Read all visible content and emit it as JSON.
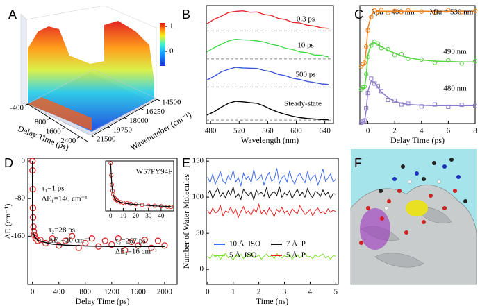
{
  "chart_data": [
    {
      "label": "A",
      "type": "surface3d",
      "xlabel": "Delay Time (ps)",
      "ylabel": "Wavenumber (cm⁻¹)",
      "xlim": [
        -400,
        2800
      ],
      "xticks": [
        -400,
        800,
        1600,
        2400
      ],
      "ylim": [
        14500,
        21500
      ],
      "yticks": [
        14500,
        16250,
        18000,
        19750,
        21500
      ],
      "clim": [
        -0.58,
        1.14
      ],
      "cticks": [
        1,
        0
      ]
    },
    {
      "label": "B",
      "type": "line",
      "xlabel": "Wavelength (nm)",
      "xlim": [
        474,
        652
      ],
      "xticks": [
        480,
        520,
        560,
        600,
        640
      ],
      "ylim": [
        0,
        4.2
      ],
      "x": [
        475,
        485,
        495,
        505,
        515,
        525,
        535,
        545,
        555,
        565,
        575,
        585,
        595,
        605,
        615,
        625,
        635,
        645
      ],
      "series": [
        {
          "name": "0.3 ps",
          "color": "#e8282e",
          "baseline": 3.3,
          "values": [
            3.55,
            3.71,
            3.82,
            3.95,
            3.99,
            4.01,
            3.96,
            3.97,
            3.88,
            3.85,
            3.74,
            3.7,
            3.6,
            3.58,
            3.5,
            3.47,
            3.41,
            3.39
          ]
        },
        {
          "name": "10 ps",
          "color": "#3fd94a",
          "baseline": 2.3,
          "values": [
            2.55,
            2.7,
            2.82,
            2.94,
            3.0,
            2.98,
            2.97,
            2.94,
            2.9,
            2.82,
            2.77,
            2.68,
            2.63,
            2.55,
            2.52,
            2.44,
            2.43,
            2.37
          ]
        },
        {
          "name": "500 ps",
          "color": "#3a56d4",
          "baseline": 1.3,
          "values": [
            1.55,
            1.68,
            1.84,
            1.93,
            2.0,
            1.98,
            1.97,
            1.96,
            1.89,
            1.84,
            1.75,
            1.7,
            1.61,
            1.57,
            1.5,
            1.46,
            1.41,
            1.39
          ]
        },
        {
          "name": "Steady-state",
          "color": "#000000",
          "baseline": 0.12,
          "values": [
            0.3,
            0.42,
            0.58,
            0.72,
            0.79,
            0.77,
            0.74,
            0.72,
            0.62,
            0.5,
            0.4,
            0.32,
            0.26,
            0.21,
            0.18,
            0.16,
            0.14,
            0.13
          ]
        }
      ]
    },
    {
      "label": "C",
      "type": "line",
      "xlabel": "Delay Time (ps)",
      "annotation": "λpu = 400 nm",
      "xlim": [
        -0.6,
        8
      ],
      "xticks": [
        0,
        2,
        4,
        6,
        8
      ],
      "ylim": [
        0,
        3.1
      ],
      "x": [
        -0.5,
        -0.375,
        -0.25,
        -0.125,
        0,
        0.25,
        0.5,
        0.75,
        1,
        1.5,
        2,
        2.5,
        3,
        4,
        5,
        6,
        7,
        8
      ],
      "series": [
        {
          "name": "λflu = 530 nm",
          "color": "#f0821e",
          "marker": "circle",
          "values": [
            1.5,
            1.56,
            1.6,
            2.02,
            2.45,
            2.8,
            2.97,
            2.92,
            2.98,
            2.91,
            2.96,
            2.93,
            2.97,
            2.94,
            2.92,
            2.98,
            2.93,
            2.96
          ],
          "fit": [
            1.53,
            1.53,
            1.56,
            1.95,
            2.5,
            2.85,
            2.93,
            2.95,
            2.95,
            2.95,
            2.95,
            2.95,
            2.95,
            2.95,
            2.95,
            2.95,
            2.95,
            2.95
          ]
        },
        {
          "name": "490 nm",
          "color": "#55d440",
          "marker": "circle",
          "values": [
            0.9,
            0.95,
            0.97,
            1.3,
            1.75,
            2.05,
            2.15,
            2.1,
            1.98,
            1.95,
            1.8,
            1.82,
            1.7,
            1.68,
            1.6,
            1.66,
            1.58,
            1.64
          ],
          "fit": [
            0.92,
            0.92,
            0.95,
            1.25,
            1.8,
            2.1,
            2.12,
            2.08,
            2.02,
            1.92,
            1.85,
            1.78,
            1.73,
            1.67,
            1.64,
            1.63,
            1.62,
            1.62
          ]
        },
        {
          "name": "480 nm",
          "color": "#8c7bc8",
          "marker": "square",
          "values": [
            0.02,
            0.05,
            0.08,
            0.4,
            0.8,
            1.18,
            1.05,
            0.98,
            0.85,
            0.62,
            0.6,
            0.5,
            0.52,
            0.45,
            0.5,
            0.44,
            0.49,
            0.46
          ],
          "fit": [
            0.03,
            0.03,
            0.06,
            0.35,
            0.85,
            1.12,
            1.08,
            0.95,
            0.83,
            0.68,
            0.58,
            0.53,
            0.5,
            0.48,
            0.47,
            0.47,
            0.47,
            0.47
          ]
        }
      ]
    },
    {
      "label": "D",
      "type": "scatter",
      "xlabel": "Delay Time (ps)",
      "ylabel": "ΔE (cm⁻¹)",
      "xlim": [
        -70,
        2190
      ],
      "xticks": [
        0,
        400,
        800,
        1200,
        1600,
        2000
      ],
      "ylim": [
        -263,
        6
      ],
      "yticks": [
        0,
        -80,
        -160
      ],
      "annotations": [
        "τ₁=1 ps",
        "ΔE₁=146 cm⁻¹",
        "τ₂=28 ps",
        "ΔE₂=20 cm⁻¹",
        "τ₃=267 ps",
        "ΔE₃=16 cm⁻¹"
      ],
      "points": {
        "color": "#d62728",
        "x": [
          0,
          2,
          5,
          8,
          10,
          15,
          20,
          30,
          50,
          80,
          120,
          200,
          300,
          400,
          500,
          600,
          700,
          800,
          900,
          1000,
          1100,
          1200,
          1300,
          1400,
          1500,
          1600,
          1700,
          1800,
          1900,
          2000
        ],
        "values": [
          0,
          -20,
          -60,
          -100,
          -120,
          -140,
          -150,
          -158,
          -165,
          -170,
          -168,
          -175,
          -165,
          -180,
          -170,
          -160,
          -185,
          -175,
          -165,
          -182,
          -170,
          -178,
          -165,
          -190,
          -172,
          -180,
          -168,
          -185,
          -170,
          -180
        ]
      },
      "fit": {
        "color": "#000000",
        "x": [
          0,
          1,
          2,
          3,
          5,
          10,
          20,
          40,
          80,
          150,
          300,
          500,
          800,
          1200,
          1600,
          2000
        ],
        "values": [
          0,
          -93,
          -128,
          -141,
          -149,
          -153,
          -157,
          -163,
          -169,
          -172,
          -177,
          -179,
          -181,
          -182,
          -182,
          -182
        ]
      },
      "inset": {
        "title": "W57FY94F",
        "xlim": [
          -4,
          50
        ],
        "xticks": [
          0,
          10,
          20,
          30,
          40
        ],
        "ylim": [
          -200,
          10
        ],
        "points": {
          "color": "#d62728",
          "x": [
            0,
            0.5,
            1,
            1.5,
            2,
            3,
            4,
            5,
            6,
            8,
            10,
            13,
            16,
            20,
            25,
            30,
            35,
            40,
            45,
            48
          ],
          "values": [
            0,
            -50,
            -90,
            -115,
            -130,
            -145,
            -152,
            -156,
            -160,
            -163,
            -165,
            -168,
            -170,
            -172,
            -175,
            -178,
            -178,
            -180,
            -182,
            -183
          ]
        },
        "fit": {
          "color": "#000000",
          "x": [
            0,
            0.5,
            1,
            1.5,
            2,
            3,
            4,
            5,
            6,
            8,
            10,
            13,
            16,
            20,
            25,
            30,
            35,
            40,
            45,
            48
          ],
          "values": [
            0,
            -55,
            -95,
            -118,
            -132,
            -146,
            -153,
            -157,
            -160,
            -164,
            -166,
            -169,
            -171,
            -173,
            -175,
            -177,
            -179,
            -180,
            -181,
            -182
          ]
        }
      }
    },
    {
      "label": "E",
      "type": "line",
      "xlabel": "Time (ns)",
      "ylabel": "Number of Water Molecules",
      "xlim": [
        -0.05,
        5.1
      ],
      "xticks": [
        0,
        1,
        2,
        3,
        4,
        5
      ],
      "ylim": [
        -21,
        154
      ],
      "yticks": [
        0,
        50,
        100,
        150
      ],
      "x": [
        0,
        0.1,
        0.2,
        0.3,
        0.4,
        0.5,
        0.6,
        0.7,
        0.8,
        0.9,
        1,
        1.1,
        1.2,
        1.3,
        1.4,
        1.5,
        1.6,
        1.7,
        1.8,
        1.9,
        2,
        2.1,
        2.2,
        2.3,
        2.4,
        2.5,
        2.6,
        2.7,
        2.8,
        2.9,
        3,
        3.1,
        3.2,
        3.3,
        3.4,
        3.5,
        3.6,
        3.7,
        3.8,
        3.9,
        4,
        4.1,
        4.2,
        4.3,
        4.4,
        4.5,
        4.6,
        4.7,
        4.8,
        4.9,
        5
      ],
      "series": [
        {
          "name": "10 Å  ISO",
          "color": "#3f6cf0",
          "values": [
            128,
            120,
            132,
            118,
            126,
            135,
            122,
            119,
            130,
            124,
            137,
            121,
            127,
            116,
            133,
            125,
            129,
            120,
            138,
            123,
            126,
            131,
            117,
            128,
            134,
            122,
            125,
            140,
            119,
            127,
            130,
            121,
            136,
            124,
            118,
            129,
            133,
            126,
            120,
            135,
            123,
            128,
            131,
            117,
            126,
            139,
            122,
            127,
            132,
            121,
            125
          ]
        },
        {
          "name": "7 Å  P",
          "color": "#111111",
          "values": [
            104,
            110,
            98,
            107,
            112,
            101,
            106,
            99,
            109,
            103,
            114,
            100,
            105,
            97,
            111,
            106,
            102,
            108,
            96,
            110,
            104,
            107,
            101,
            113,
            99,
            105,
            108,
            102,
            115,
            100,
            106,
            103,
            109,
            98,
            105,
            111,
            102,
            107,
            100,
            112,
            104,
            99,
            108,
            106,
            101,
            110,
            103,
            107,
            98,
            105,
            104
          ]
        },
        {
          "name": "5 Å  ISO",
          "color": "#7ee02a",
          "values": [
            18,
            15,
            21,
            17,
            20,
            14,
            19,
            22,
            16,
            18,
            13,
            20,
            17,
            21,
            15,
            19,
            18,
            23,
            16,
            17,
            20,
            14,
            18,
            21,
            17,
            19,
            15,
            22,
            18,
            16,
            19,
            17,
            21,
            14,
            18,
            20,
            16,
            19,
            22,
            17,
            18,
            15,
            20,
            17,
            19,
            21,
            16,
            18,
            14,
            19,
            18
          ]
        },
        {
          "name": "5 Å  P",
          "color": "#ee2020",
          "values": [
            82,
            76,
            85,
            78,
            80,
            88,
            74,
            81,
            79,
            86,
            77,
            83,
            72,
            80,
            87,
            78,
            81,
            75,
            84,
            79,
            90,
            77,
            82,
            76,
            85,
            80,
            73,
            83,
            79,
            86,
            78,
            81,
            75,
            84,
            80,
            77,
            88,
            82,
            76,
            79,
            83,
            74,
            81,
            85,
            78,
            80,
            77,
            84,
            79,
            82,
            80
          ]
        }
      ]
    },
    {
      "label": "F",
      "type": "image"
    }
  ]
}
